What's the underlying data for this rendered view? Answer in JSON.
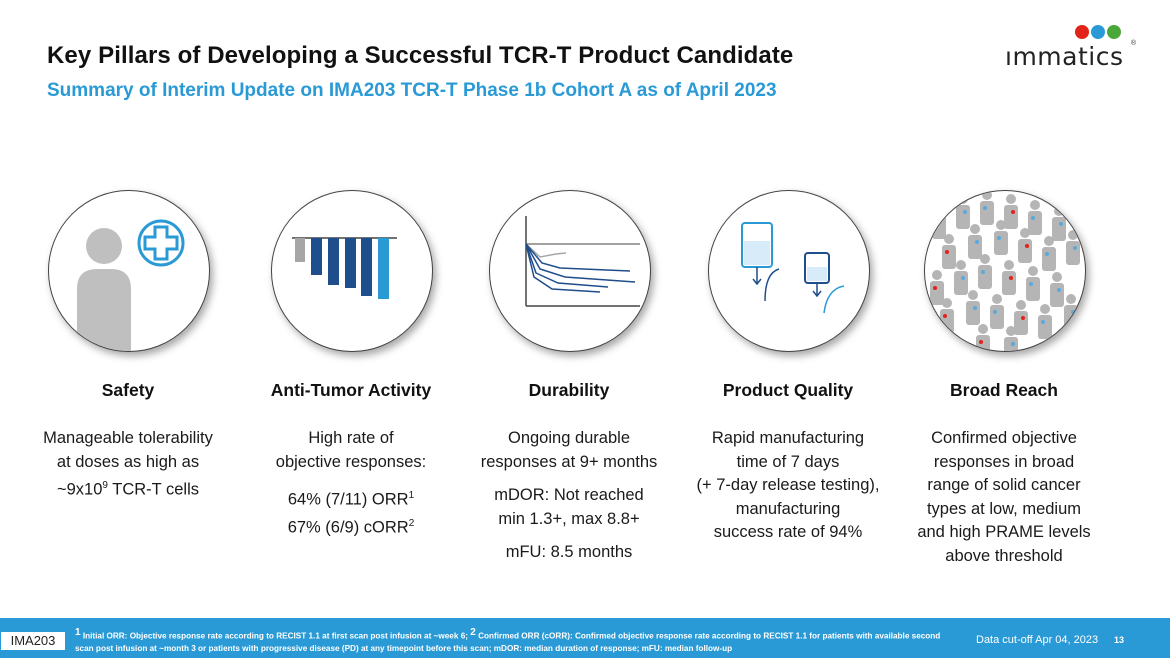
{
  "header": {
    "title": "Key Pillars of Developing a Successful TCR-T Product Candidate",
    "subtitle": "Summary of Interim Update on IMA203 TCR-T Phase 1b Cohort A as of April 2023"
  },
  "logo": {
    "text": "ımmatics",
    "registered": "®",
    "colors": [
      "#e2231a",
      "#2a9ad6",
      "#4aa83b"
    ]
  },
  "pillars": [
    {
      "icon": "person-medical-cross-icon",
      "title": "Safety",
      "lines": [
        "Manageable tolerability",
        "at doses as high as"
      ],
      "dose_prefix": "~9x10",
      "dose_exp": "9",
      "dose_suffix": " TCR-T cells"
    },
    {
      "icon": "waterfall-bar-chart-icon",
      "title": "Anti-Tumor Activity",
      "intro": [
        "High rate of",
        "objective responses:"
      ],
      "orr": "64% (7/11) ORR",
      "orr_sup": "1",
      "corr": "67% (6/9) cORR",
      "corr_sup": "2"
    },
    {
      "icon": "spider-plot-icon",
      "title": "Durability",
      "lines": [
        "Ongoing durable",
        "responses at 9+ months"
      ],
      "mdor": [
        "mDOR: Not reached",
        "min 1.3+, max 8.8+"
      ],
      "mfu": "mFU: 8.5 months"
    },
    {
      "icon": "infusion-bag-icon",
      "title": "Product Quality",
      "lines": [
        "Rapid manufacturing",
        "time of 7 days",
        "(+ 7-day release testing),",
        "manufacturing",
        "success rate of 94%"
      ]
    },
    {
      "icon": "patient-population-icon",
      "title": "Broad Reach",
      "lines": [
        "Confirmed objective",
        "responses in broad",
        "range of solid cancer",
        "types at low, medium",
        "and high PRAME levels",
        "above threshold"
      ]
    }
  ],
  "footer": {
    "tag": "IMA203",
    "note1_sup": "1",
    "note1": " Initial ORR: Objective response rate according to RECIST 1.1 at first scan post infusion at ~week 6; ",
    "note2_sup": "2",
    "note2": " Confirmed ORR (cORR): Confirmed objective response rate according to RECIST 1.1 for patients with available second scan post infusion at ~month 3 or patients with progressive disease (PD) at any timepoint before this scan; mDOR: median duration of response; mFU: median follow-up",
    "cutoff": "Data cut-off Apr 04, 2023",
    "page": "13"
  },
  "colors": {
    "accent": "#2a9ad6",
    "dark_blue": "#1f4e8c",
    "gray_figure": "#bfbfbf"
  }
}
